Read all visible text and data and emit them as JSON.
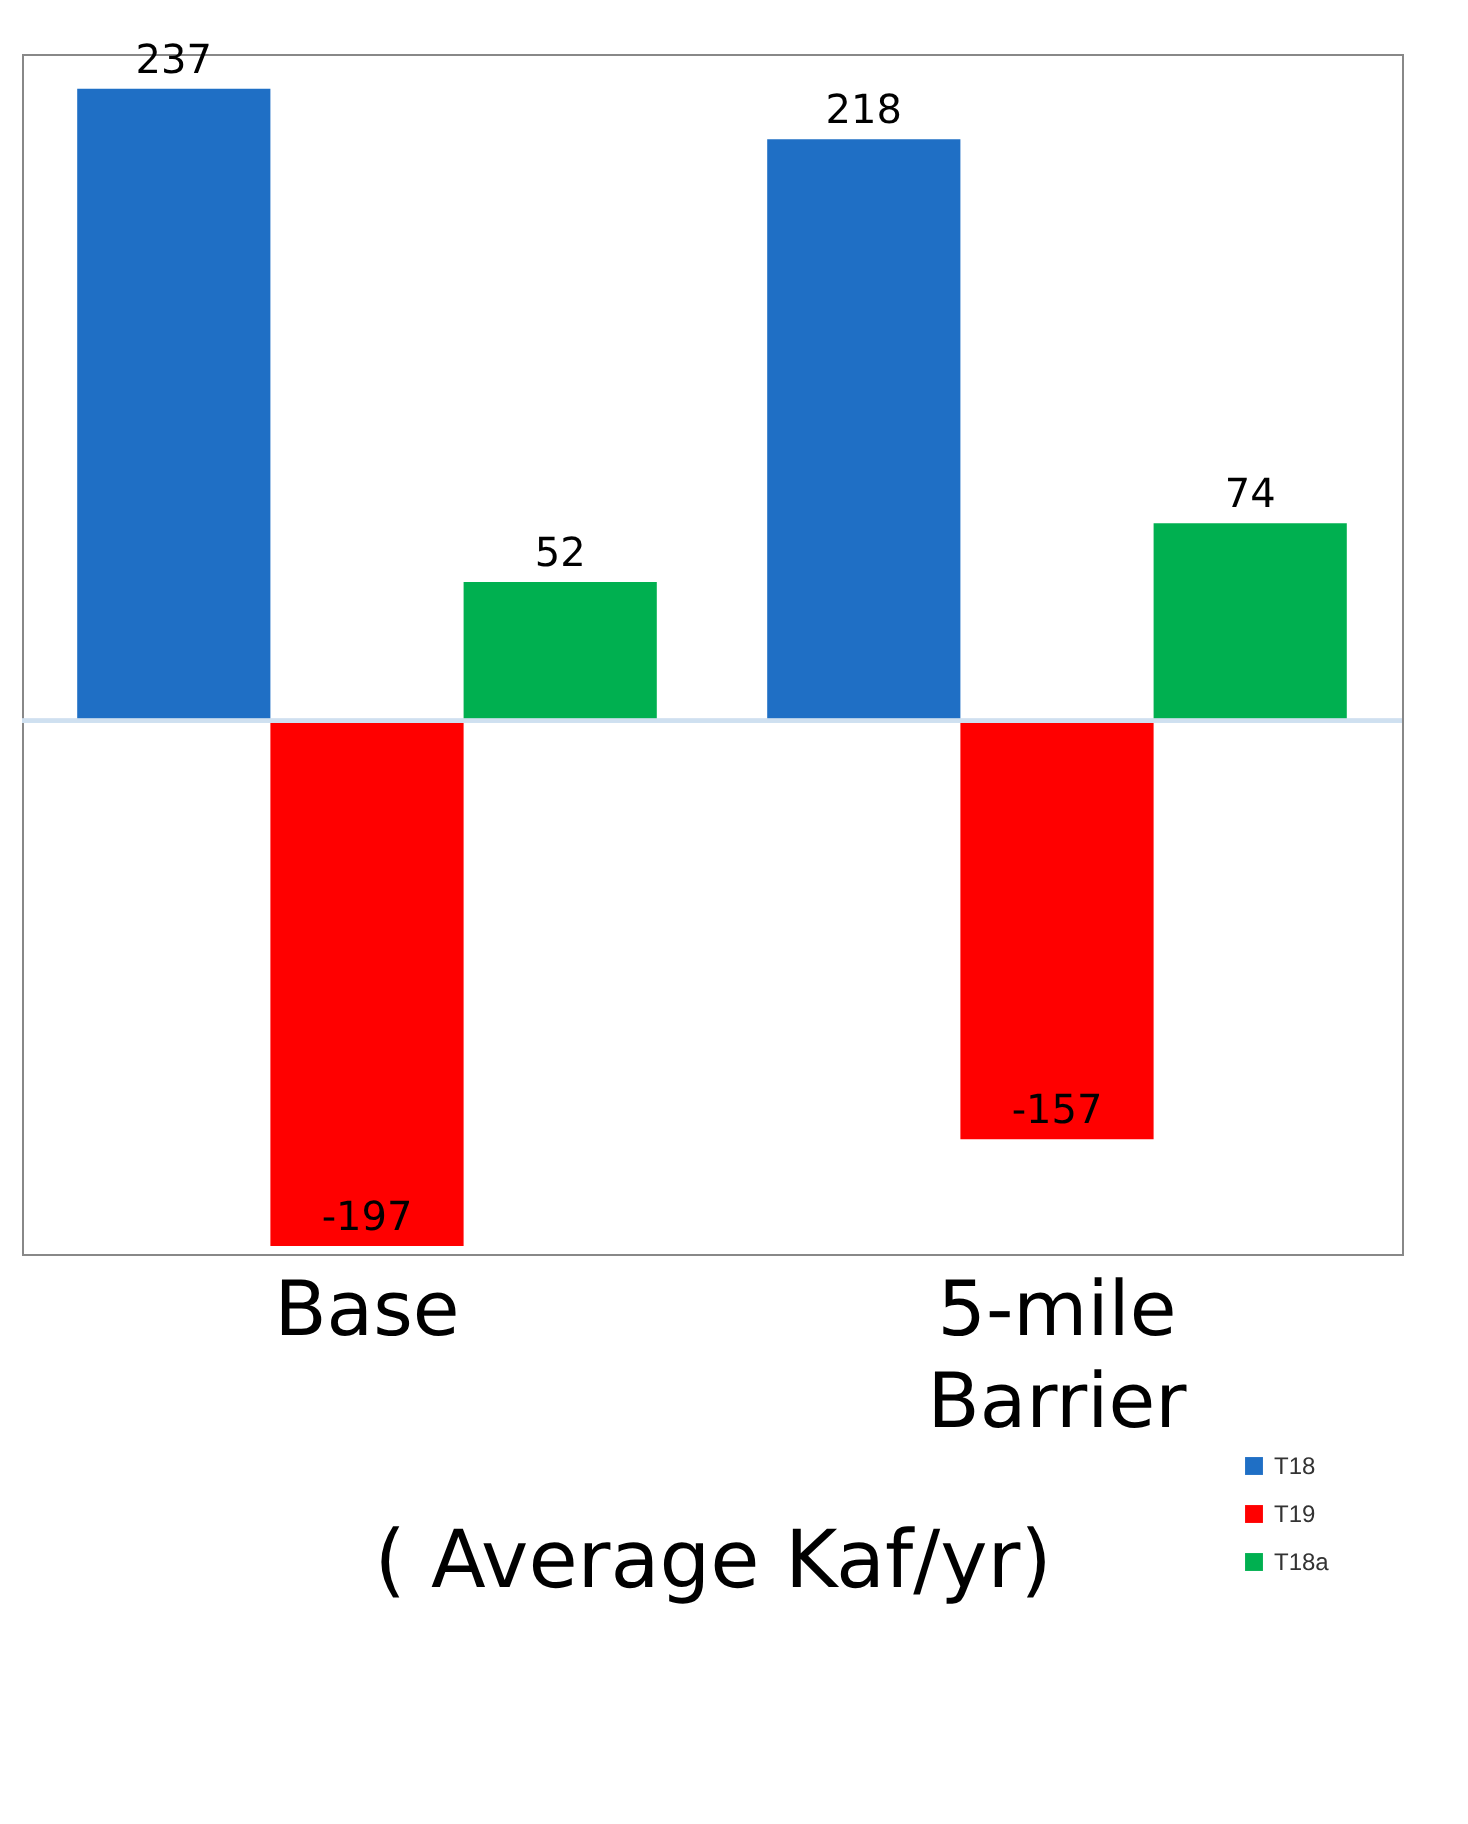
{
  "chart_data": {
    "type": "bar",
    "categories": [
      "Base",
      "5-mile Barrier"
    ],
    "xlabel": "( Average  Kaf/yr)",
    "series": [
      {
        "name": "T18",
        "color": "#1f6fc5",
        "values": [
          237,
          218
        ]
      },
      {
        "name": "T19",
        "color": "#ff0000",
        "values": [
          -197,
          -157
        ]
      },
      {
        "name": "T18a",
        "color": "#00b050",
        "values": [
          52,
          74
        ]
      }
    ],
    "data_labels": true,
    "legend": "bottom right"
  }
}
